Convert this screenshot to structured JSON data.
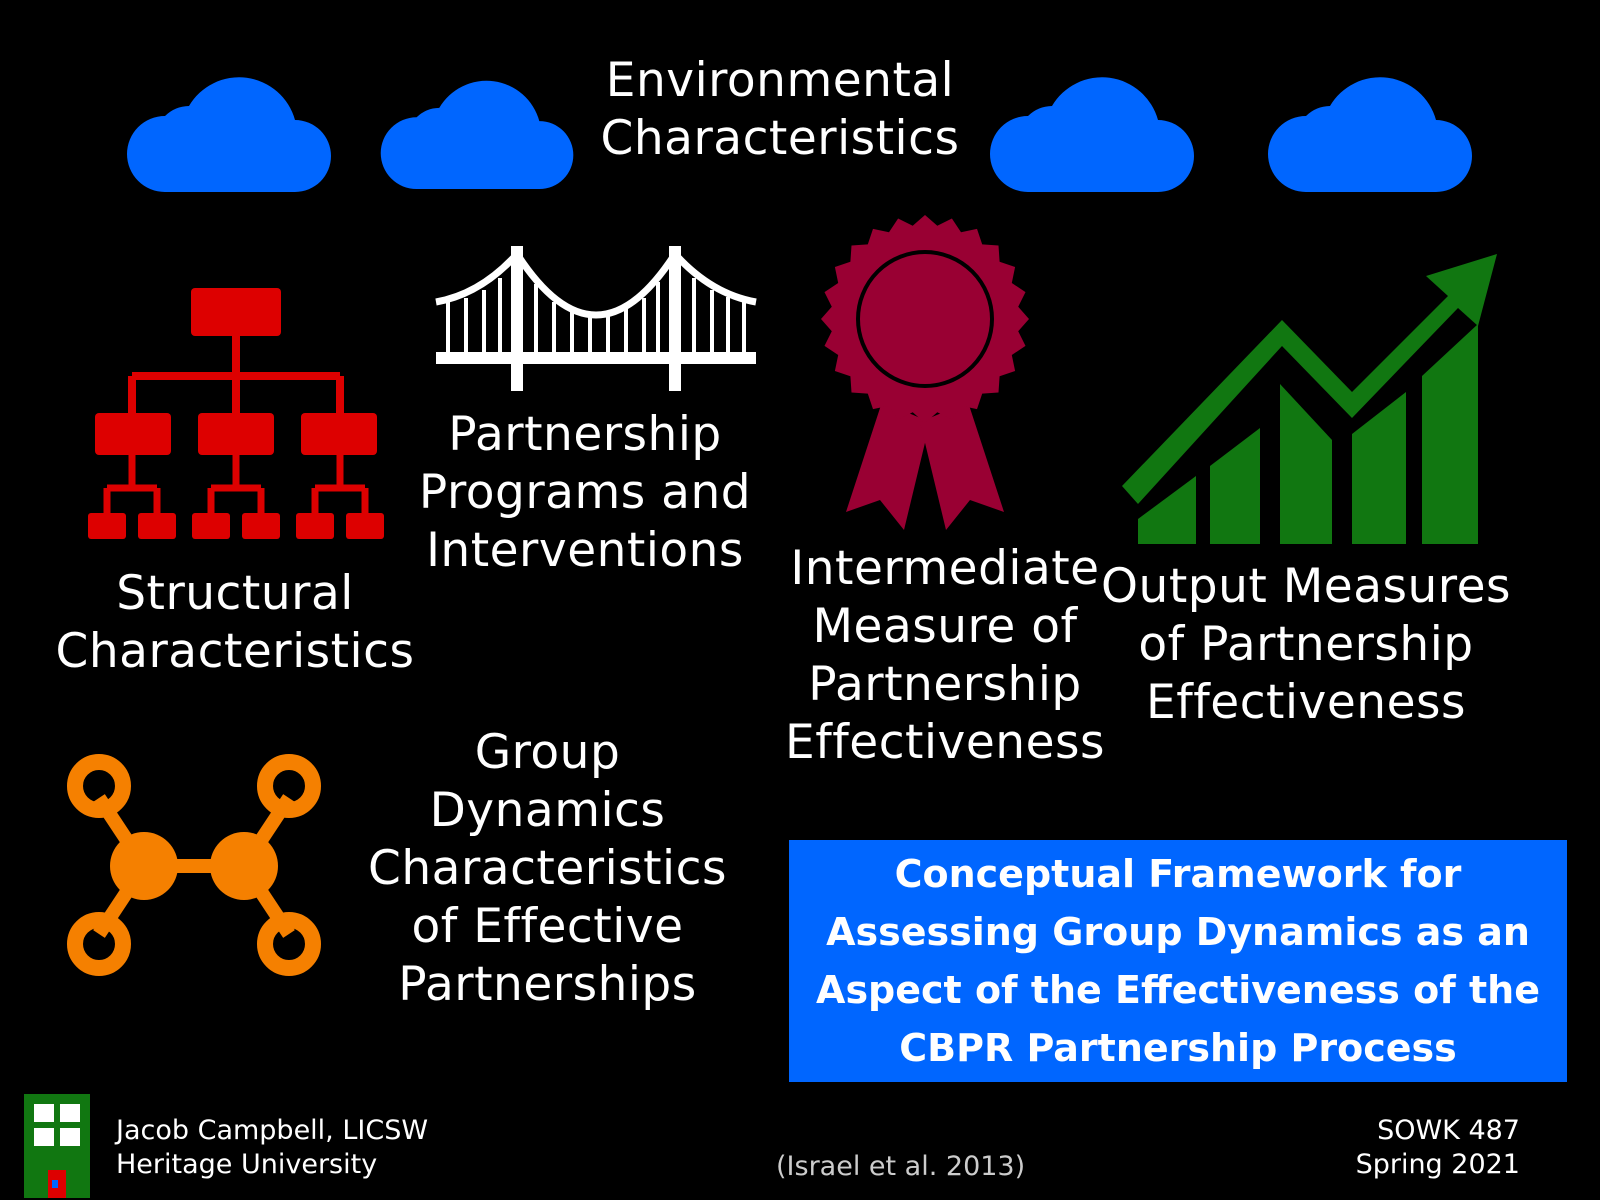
{
  "colors": {
    "background": "#000000",
    "cloud": "#0066ff",
    "org_chart": "#dd0000",
    "bridge": "#ffffff",
    "ribbon": "#990033",
    "growth_chart": "#117711",
    "network": "#f58000",
    "framework_box": "#0066ff",
    "logo": "#117711"
  },
  "icons": {
    "cloud": "cloud-icon",
    "structural": "org-chart-icon",
    "programs": "bridge-icon",
    "intermediate": "award-ribbon-icon",
    "output": "growth-chart-icon",
    "group_dynamics": "network-molecule-icon",
    "logo": "building-logo-icon"
  },
  "labels": {
    "environmental": "Environmental\nCharacteristics",
    "structural": "Structural\nCharacteristics",
    "programs": "Partnership\nPrograms and\nInterventions",
    "intermediate": "Intermediate\nMeasure of\nPartnership\nEffectiveness",
    "output": "Output Measures\nof Partnership\nEffectiveness",
    "group_dynamics": "Group\nDynamics\nCharacteristics\nof Effective\nPartnerships"
  },
  "framework_title": "Conceptual Framework for\nAssessing Group Dynamics as an\nAspect of the Effectiveness of the\nCBPR Partnership Process",
  "footer": {
    "author": "Jacob Campbell, LICSW",
    "institution": "Heritage University",
    "citation": "(Israel et al. 2013)",
    "course": "SOWK 487",
    "term": "Spring 2021"
  }
}
